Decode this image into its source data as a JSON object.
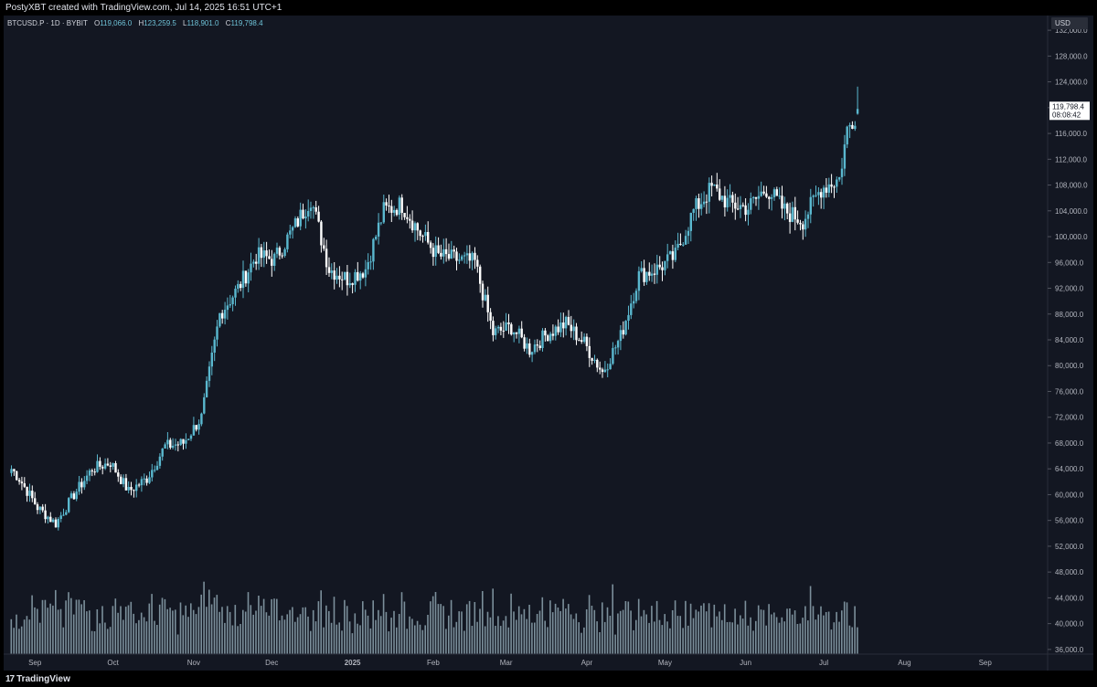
{
  "header": {
    "attribution": "PostyXBT created with TradingView.com, Jul 14, 2025 16:51 UTC+1"
  },
  "footer": {
    "brand_mark": "17",
    "brand": "TradingView"
  },
  "legend": {
    "symbol": "BTCUSD.P · 1D · BYBIT",
    "open_label": "O",
    "open": "119,066.0",
    "high_label": "H",
    "high": "123,259.5",
    "low_label": "L",
    "low": "118,901.0",
    "close_label": "C",
    "close": "119,798.4"
  },
  "colors": {
    "background": "#131722",
    "up": "#5ab8cf",
    "down": "#ffffff",
    "volume": "#8ea4b0",
    "axis_text": "#b2b5be"
  },
  "chart_data": {
    "type": "candlestick",
    "symbol": "BTCUSD.P",
    "interval": "1D",
    "exchange": "BYBIT",
    "currency": "USD",
    "current_price": 119798.4,
    "current_price_label": "119,798.4",
    "countdown_label": "08:08:42",
    "ohlc": {
      "open": 119066.0,
      "high": 123259.5,
      "low": 118901.0,
      "close": 119798.4
    },
    "ylim": [
      34000,
      134000
    ],
    "y_ticks": [
      36000,
      40000,
      44000,
      48000,
      52000,
      56000,
      60000,
      64000,
      68000,
      72000,
      76000,
      80000,
      84000,
      88000,
      92000,
      96000,
      100000,
      104000,
      108000,
      112000,
      116000,
      120000,
      124000,
      128000,
      132000
    ],
    "y_tick_labels": [
      "36,000.0",
      "40,000.0",
      "44,000.0",
      "48,000.0",
      "52,000.0",
      "56,000.0",
      "60,000.0",
      "64,000.0",
      "68,000.0",
      "72,000.0",
      "76,000.0",
      "80,000.0",
      "84,000.0",
      "88,000.0",
      "92,000.0",
      "96,000.0",
      "100,000.0",
      "104,000.0",
      "108,000.0",
      "112,000.0",
      "116,000.0",
      "120,000.0",
      "124,000.0",
      "128,000.0",
      "132,000.0"
    ],
    "x_range": [
      "2024-08-20",
      "2025-09-25"
    ],
    "x_ticks": [
      {
        "date": "2024-09-01",
        "label": "Sep",
        "bold": false
      },
      {
        "date": "2024-10-01",
        "label": "Oct",
        "bold": false
      },
      {
        "date": "2024-11-01",
        "label": "Nov",
        "bold": false
      },
      {
        "date": "2024-12-01",
        "label": "Dec",
        "bold": false
      },
      {
        "date": "2025-01-01",
        "label": "2025",
        "bold": true
      },
      {
        "date": "2025-02-01",
        "label": "Feb",
        "bold": false
      },
      {
        "date": "2025-03-01",
        "label": "Mar",
        "bold": false
      },
      {
        "date": "2025-04-01",
        "label": "Apr",
        "bold": false
      },
      {
        "date": "2025-05-01",
        "label": "May",
        "bold": false
      },
      {
        "date": "2025-06-01",
        "label": "Jun",
        "bold": false
      },
      {
        "date": "2025-07-01",
        "label": "Jul",
        "bold": false
      },
      {
        "date": "2025-08-01",
        "label": "Aug",
        "bold": false
      },
      {
        "date": "2025-09-01",
        "label": "Sep",
        "bold": false
      }
    ],
    "first_date": "2024-08-23",
    "weekly_close": [
      {
        "date": "2024-08-23",
        "close": 64000
      },
      {
        "date": "2024-08-26",
        "close": 62500
      },
      {
        "date": "2024-09-02",
        "close": 58000
      },
      {
        "date": "2024-09-09",
        "close": 55500
      },
      {
        "date": "2024-09-16",
        "close": 60000
      },
      {
        "date": "2024-09-23",
        "close": 64000
      },
      {
        "date": "2024-09-30",
        "close": 65000
      },
      {
        "date": "2024-10-07",
        "close": 60500
      },
      {
        "date": "2024-10-14",
        "close": 62500
      },
      {
        "date": "2024-10-21",
        "close": 67500
      },
      {
        "date": "2024-10-28",
        "close": 68000
      },
      {
        "date": "2024-11-04",
        "close": 72000
      },
      {
        "date": "2024-11-11",
        "close": 88000
      },
      {
        "date": "2024-11-18",
        "close": 92000
      },
      {
        "date": "2024-11-25",
        "close": 97000
      },
      {
        "date": "2024-12-02",
        "close": 96500
      },
      {
        "date": "2024-12-09",
        "close": 101000
      },
      {
        "date": "2024-12-16",
        "close": 106000
      },
      {
        "date": "2024-12-23",
        "close": 95000
      },
      {
        "date": "2024-12-30",
        "close": 93500
      },
      {
        "date": "2025-01-06",
        "close": 95000
      },
      {
        "date": "2025-01-13",
        "close": 104000
      },
      {
        "date": "2025-01-20",
        "close": 105000
      },
      {
        "date": "2025-01-27",
        "close": 100500
      },
      {
        "date": "2025-02-03",
        "close": 97000
      },
      {
        "date": "2025-02-10",
        "close": 96500
      },
      {
        "date": "2025-02-17",
        "close": 96000
      },
      {
        "date": "2025-02-24",
        "close": 85000
      },
      {
        "date": "2025-03-03",
        "close": 86000
      },
      {
        "date": "2025-03-10",
        "close": 82500
      },
      {
        "date": "2025-03-17",
        "close": 85000
      },
      {
        "date": "2025-03-24",
        "close": 86500
      },
      {
        "date": "2025-03-31",
        "close": 83500
      },
      {
        "date": "2025-04-07",
        "close": 79000
      },
      {
        "date": "2025-04-14",
        "close": 84500
      },
      {
        "date": "2025-04-21",
        "close": 94000
      },
      {
        "date": "2025-04-28",
        "close": 95000
      },
      {
        "date": "2025-05-05",
        "close": 97000
      },
      {
        "date": "2025-05-12",
        "close": 104000
      },
      {
        "date": "2025-05-19",
        "close": 107500
      },
      {
        "date": "2025-05-26",
        "close": 105000
      },
      {
        "date": "2025-06-02",
        "close": 104500
      },
      {
        "date": "2025-06-09",
        "close": 107500
      },
      {
        "date": "2025-06-16",
        "close": 104000
      },
      {
        "date": "2025-06-23",
        "close": 102500
      },
      {
        "date": "2025-06-30",
        "close": 107500
      },
      {
        "date": "2025-07-07",
        "close": 109000
      },
      {
        "date": "2025-07-10",
        "close": 116500
      },
      {
        "date": "2025-07-14",
        "close": 119798.4
      }
    ],
    "volume_note": "volume histogram drawn along bottom without scale"
  }
}
